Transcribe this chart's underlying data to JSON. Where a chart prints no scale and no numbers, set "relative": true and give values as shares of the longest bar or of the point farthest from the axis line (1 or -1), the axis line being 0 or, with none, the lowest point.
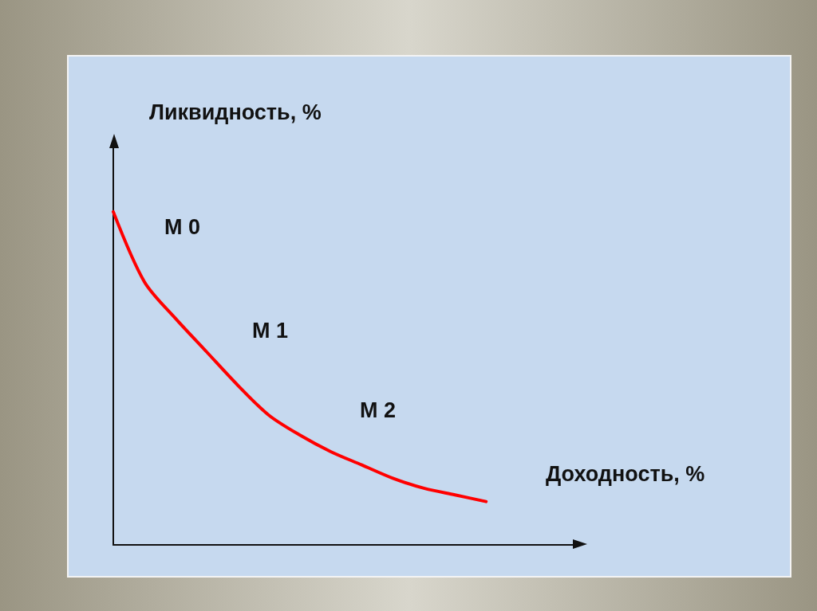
{
  "chart_data": {
    "type": "line",
    "relative": true,
    "xlabel": "Доходность, %",
    "ylabel": "Ликвидность, %",
    "annotations": [
      "M 0",
      "M 1",
      "M 2"
    ],
    "categories": [
      null,
      null,
      null,
      null,
      null,
      null,
      null,
      null,
      null,
      null,
      null,
      null,
      null,
      null,
      null,
      null
    ],
    "series": [
      {
        "color": "#ff0000",
        "values": [
          1.0,
          0.79,
          0.68,
          0.58,
          0.48,
          0.39,
          0.33,
          0.28,
          0.24,
          0.2,
          0.17,
          0.15,
          0.13,
          null,
          null,
          null
        ]
      }
    ],
    "marker": "none",
    "line_style": "solid",
    "grid": false
  }
}
